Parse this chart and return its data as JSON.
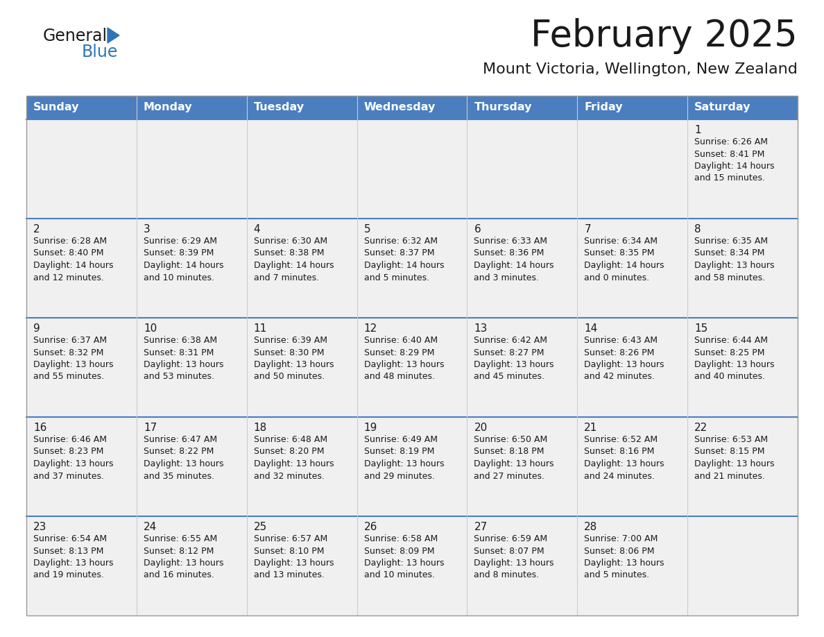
{
  "title": "February 2025",
  "subtitle": "Mount Victoria, Wellington, New Zealand",
  "days_of_week": [
    "Sunday",
    "Monday",
    "Tuesday",
    "Wednesday",
    "Thursday",
    "Friday",
    "Saturday"
  ],
  "header_bg": "#4a7ebf",
  "header_text": "#FFFFFF",
  "cell_bg": "#f0f0f0",
  "title_color": "#1a1a1a",
  "subtitle_color": "#1a1a1a",
  "day_num_color": "#1a1a1a",
  "cell_text_color": "#1a1a1a",
  "logo_general_color": "#1a1a1a",
  "logo_blue_color": "#2e75b6",
  "row_divider_color": "#4a7ebf",
  "outer_border_color": "#999999",
  "col_divider_color": "#cccccc",
  "calendar_data": [
    [
      null,
      null,
      null,
      null,
      null,
      null,
      {
        "day": 1,
        "sunrise": "6:26 AM",
        "sunset": "8:41 PM",
        "daylight": "14 hours\nand 15 minutes."
      }
    ],
    [
      {
        "day": 2,
        "sunrise": "6:28 AM",
        "sunset": "8:40 PM",
        "daylight": "14 hours\nand 12 minutes."
      },
      {
        "day": 3,
        "sunrise": "6:29 AM",
        "sunset": "8:39 PM",
        "daylight": "14 hours\nand 10 minutes."
      },
      {
        "day": 4,
        "sunrise": "6:30 AM",
        "sunset": "8:38 PM",
        "daylight": "14 hours\nand 7 minutes."
      },
      {
        "day": 5,
        "sunrise": "6:32 AM",
        "sunset": "8:37 PM",
        "daylight": "14 hours\nand 5 minutes."
      },
      {
        "day": 6,
        "sunrise": "6:33 AM",
        "sunset": "8:36 PM",
        "daylight": "14 hours\nand 3 minutes."
      },
      {
        "day": 7,
        "sunrise": "6:34 AM",
        "sunset": "8:35 PM",
        "daylight": "14 hours\nand 0 minutes."
      },
      {
        "day": 8,
        "sunrise": "6:35 AM",
        "sunset": "8:34 PM",
        "daylight": "13 hours\nand 58 minutes."
      }
    ],
    [
      {
        "day": 9,
        "sunrise": "6:37 AM",
        "sunset": "8:32 PM",
        "daylight": "13 hours\nand 55 minutes."
      },
      {
        "day": 10,
        "sunrise": "6:38 AM",
        "sunset": "8:31 PM",
        "daylight": "13 hours\nand 53 minutes."
      },
      {
        "day": 11,
        "sunrise": "6:39 AM",
        "sunset": "8:30 PM",
        "daylight": "13 hours\nand 50 minutes."
      },
      {
        "day": 12,
        "sunrise": "6:40 AM",
        "sunset": "8:29 PM",
        "daylight": "13 hours\nand 48 minutes."
      },
      {
        "day": 13,
        "sunrise": "6:42 AM",
        "sunset": "8:27 PM",
        "daylight": "13 hours\nand 45 minutes."
      },
      {
        "day": 14,
        "sunrise": "6:43 AM",
        "sunset": "8:26 PM",
        "daylight": "13 hours\nand 42 minutes."
      },
      {
        "day": 15,
        "sunrise": "6:44 AM",
        "sunset": "8:25 PM",
        "daylight": "13 hours\nand 40 minutes."
      }
    ],
    [
      {
        "day": 16,
        "sunrise": "6:46 AM",
        "sunset": "8:23 PM",
        "daylight": "13 hours\nand 37 minutes."
      },
      {
        "day": 17,
        "sunrise": "6:47 AM",
        "sunset": "8:22 PM",
        "daylight": "13 hours\nand 35 minutes."
      },
      {
        "day": 18,
        "sunrise": "6:48 AM",
        "sunset": "8:20 PM",
        "daylight": "13 hours\nand 32 minutes."
      },
      {
        "day": 19,
        "sunrise": "6:49 AM",
        "sunset": "8:19 PM",
        "daylight": "13 hours\nand 29 minutes."
      },
      {
        "day": 20,
        "sunrise": "6:50 AM",
        "sunset": "8:18 PM",
        "daylight": "13 hours\nand 27 minutes."
      },
      {
        "day": 21,
        "sunrise": "6:52 AM",
        "sunset": "8:16 PM",
        "daylight": "13 hours\nand 24 minutes."
      },
      {
        "day": 22,
        "sunrise": "6:53 AM",
        "sunset": "8:15 PM",
        "daylight": "13 hours\nand 21 minutes."
      }
    ],
    [
      {
        "day": 23,
        "sunrise": "6:54 AM",
        "sunset": "8:13 PM",
        "daylight": "13 hours\nand 19 minutes."
      },
      {
        "day": 24,
        "sunrise": "6:55 AM",
        "sunset": "8:12 PM",
        "daylight": "13 hours\nand 16 minutes."
      },
      {
        "day": 25,
        "sunrise": "6:57 AM",
        "sunset": "8:10 PM",
        "daylight": "13 hours\nand 13 minutes."
      },
      {
        "day": 26,
        "sunrise": "6:58 AM",
        "sunset": "8:09 PM",
        "daylight": "13 hours\nand 10 minutes."
      },
      {
        "day": 27,
        "sunrise": "6:59 AM",
        "sunset": "8:07 PM",
        "daylight": "13 hours\nand 8 minutes."
      },
      {
        "day": 28,
        "sunrise": "7:00 AM",
        "sunset": "8:06 PM",
        "daylight": "13 hours\nand 5 minutes."
      },
      null
    ]
  ]
}
